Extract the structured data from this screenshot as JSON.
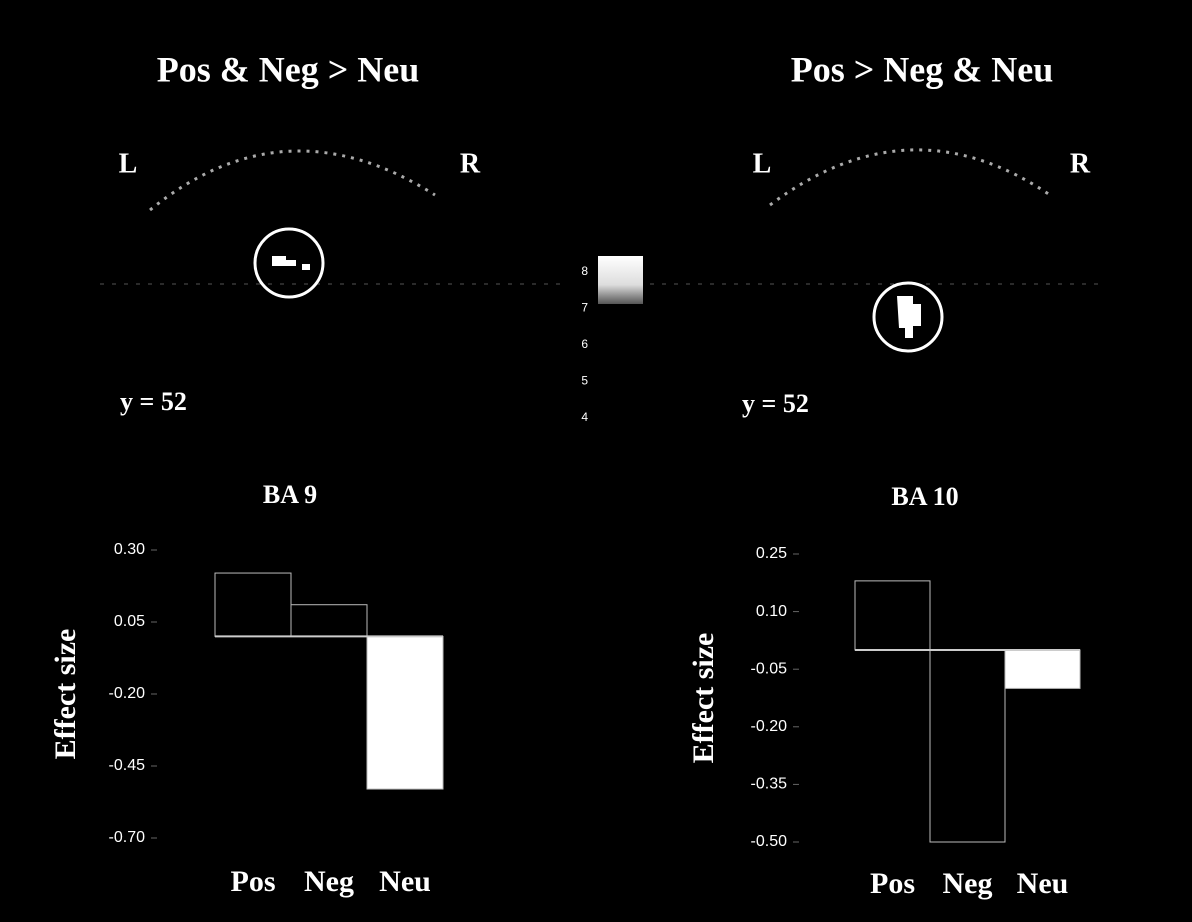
{
  "panels": [
    {
      "title": "Pos & Neg > Neu",
      "left": "L",
      "right": "R",
      "slice": "y = 52"
    },
    {
      "title": "Pos > Neg & Neu",
      "left": "L",
      "right": "R",
      "slice": "y = 52"
    }
  ],
  "colorbar": {
    "ticks": [
      8,
      7,
      6,
      5,
      4
    ],
    "range": [
      4,
      8
    ]
  },
  "chart_data": [
    {
      "type": "bar",
      "title": "BA 9",
      "ylabel": "Effect size",
      "categories": [
        "Pos",
        "Neg",
        "Neu"
      ],
      "values": [
        0.22,
        0.11,
        -0.53
      ],
      "colors": [
        "#000000",
        "#000000",
        "#ffffff"
      ],
      "ylim": [
        -0.7,
        0.3
      ],
      "yticks": [
        {
          "value": 0.3,
          "label": "0.30"
        },
        {
          "value": 0.05,
          "label": "0.05"
        },
        {
          "value": -0.2,
          "label": "-0.20"
        },
        {
          "value": -0.45,
          "label": "-0.45"
        },
        {
          "value": -0.7,
          "label": "-0.70"
        }
      ]
    },
    {
      "type": "bar",
      "title": "BA 10",
      "ylabel": "Effect size",
      "categories": [
        "Pos",
        "Neg",
        "Neu"
      ],
      "values": [
        0.18,
        -0.5,
        -0.1
      ],
      "colors": [
        "#000000",
        "#000000",
        "#ffffff"
      ],
      "ylim": [
        -0.5,
        0.25
      ],
      "yticks": [
        {
          "value": 0.25,
          "label": "0.25"
        },
        {
          "value": 0.1,
          "label": "0.10"
        },
        {
          "value": -0.05,
          "label": "-0.05"
        },
        {
          "value": -0.2,
          "label": "-0.20"
        },
        {
          "value": -0.35,
          "label": "-0.35"
        },
        {
          "value": -0.5,
          "label": "-0.50"
        }
      ]
    }
  ]
}
